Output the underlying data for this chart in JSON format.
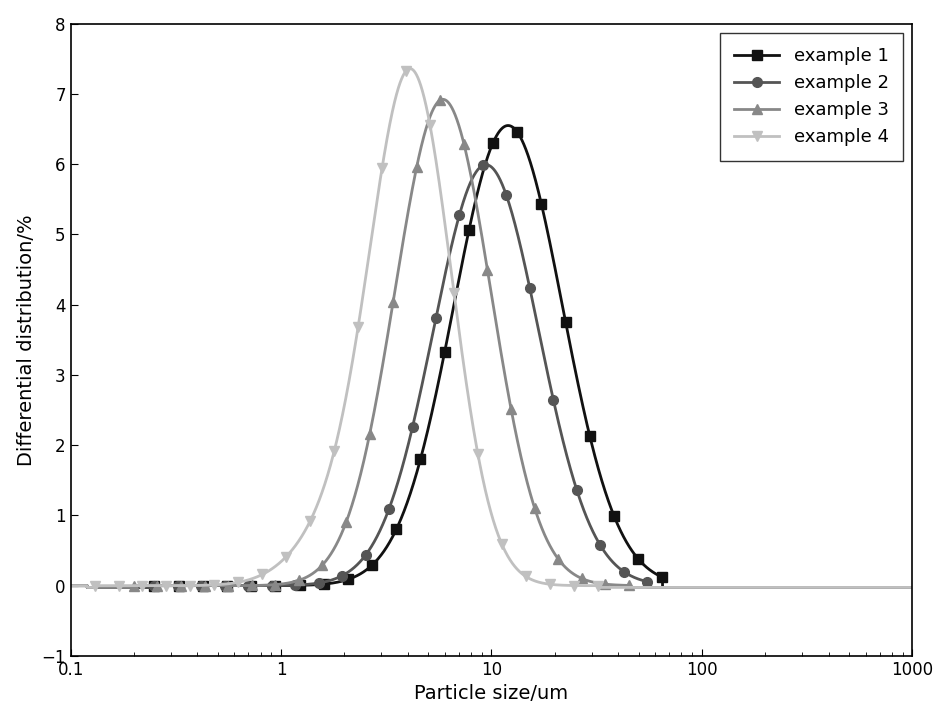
{
  "xlabel": "Particle size/um",
  "ylabel": "Differential distribution/%",
  "xlim": [
    0.1,
    1000
  ],
  "ylim": [
    -1,
    8
  ],
  "yticks": [
    -1,
    0,
    1,
    2,
    3,
    4,
    5,
    6,
    7,
    8
  ],
  "series": [
    {
      "label": "example 1",
      "color": "#111111",
      "marker": "s",
      "markersize": 7,
      "linewidth": 2.0,
      "peak_x": 12.0,
      "sigma_log": 0.6,
      "scale": 6.1,
      "shoulder_scale": 0.45,
      "shoulder_mu": 0.0,
      "shoulder_sigma": 0.55,
      "x_start": 0.25,
      "x_end": 65,
      "noise_level": -0.05
    },
    {
      "label": "example 2",
      "color": "#555555",
      "marker": "o",
      "markersize": 7,
      "linewidth": 2.0,
      "peak_x": 9.5,
      "sigma_log": 0.58,
      "scale": 5.55,
      "shoulder_scale": 0.45,
      "shoulder_mu": -0.1,
      "shoulder_sigma": 0.52,
      "x_start": 0.25,
      "x_end": 55,
      "noise_level": -0.05
    },
    {
      "label": "example 3",
      "color": "#888888",
      "marker": "^",
      "markersize": 7,
      "linewidth": 2.0,
      "peak_x": 6.0,
      "sigma_log": 0.52,
      "scale": 6.5,
      "shoulder_scale": 0.5,
      "shoulder_mu": -0.3,
      "shoulder_sigma": 0.5,
      "x_start": 0.2,
      "x_end": 45,
      "noise_level": -0.05
    },
    {
      "label": "example 4",
      "color": "#c0c0c0",
      "marker": "v",
      "markersize": 7,
      "linewidth": 2.0,
      "peak_x": 4.2,
      "sigma_log": 0.44,
      "scale": 7.1,
      "shoulder_scale": 0.85,
      "shoulder_mu": -0.75,
      "shoulder_sigma": 0.48,
      "x_start": 0.13,
      "x_end": 32,
      "noise_level": -0.05
    }
  ],
  "background_color": "#ffffff",
  "legend_loc": "upper right",
  "legend_fontsize": 13,
  "axis_fontsize": 14,
  "tick_fontsize": 12,
  "n_markers": 22
}
